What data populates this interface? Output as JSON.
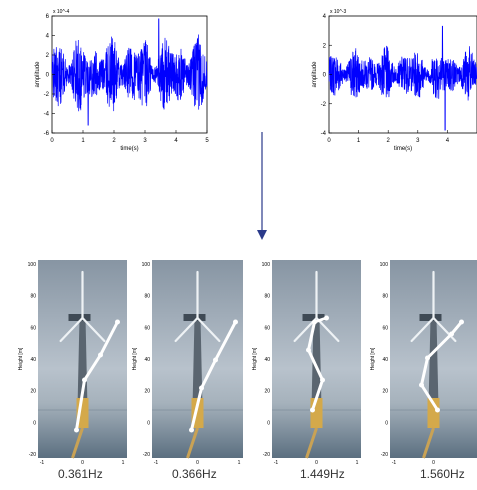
{
  "chart_data": [
    {
      "type": "line",
      "title": "",
      "xlabel": "time(s)",
      "ylabel": "amplitude",
      "exponent_label": "x 10^-4",
      "xlim": [
        0,
        5
      ],
      "ylim": [
        -6,
        6
      ],
      "xticks": [
        "0",
        "1",
        "2",
        "3",
        "4",
        "5"
      ],
      "yticks": [
        "6",
        "4",
        "2",
        "0",
        "-2",
        "-4",
        "-6"
      ],
      "series": [
        {
          "color": "#0000ff",
          "description_values": {
            "envelope_max": 5.7,
            "envelope_min": -5.2
          }
        }
      ]
    },
    {
      "type": "line",
      "title": "",
      "xlabel": "time(s)",
      "ylabel": "amplitude",
      "exponent_label": "x 10^-3",
      "xlim": [
        0,
        5
      ],
      "ylim": [
        -4,
        4
      ],
      "xticks": [
        "0",
        "1",
        "2",
        "3",
        "4"
      ],
      "yticks": [
        "4",
        "2",
        "0",
        "-2",
        "-4"
      ],
      "series": [
        {
          "color": "#0000ff",
          "description_values": {
            "envelope_max": 3.3,
            "envelope_min": -3.8
          }
        }
      ]
    }
  ],
  "arrow_color": "#2a3a8a",
  "mode_shapes": [
    {
      "frequency": "0.361Hz",
      "ylabel": "Height [m]",
      "yticks": [
        "100",
        "80",
        "60",
        "40",
        "20",
        "0",
        "-20"
      ],
      "xticks": [
        "-1",
        "0",
        "1"
      ]
    },
    {
      "frequency": "0.366Hz",
      "ylabel": "Height [m]",
      "yticks": [
        "100",
        "80",
        "60",
        "40",
        "20",
        "0",
        "-20"
      ],
      "xticks": [
        "-1",
        "0",
        "1"
      ]
    },
    {
      "frequency": "1.449Hz",
      "ylabel": "Height [m]",
      "yticks": [
        "100",
        "80",
        "60",
        "40",
        "20",
        "0",
        "-20"
      ],
      "xticks": [
        "-1",
        "0",
        "1"
      ]
    },
    {
      "frequency": "1.560Hz",
      "ylabel": "Height [m]",
      "yticks": [
        "100",
        "80",
        "60",
        "40",
        "20",
        "0",
        "-20"
      ],
      "xticks": [
        "-1",
        "0"
      ]
    }
  ]
}
